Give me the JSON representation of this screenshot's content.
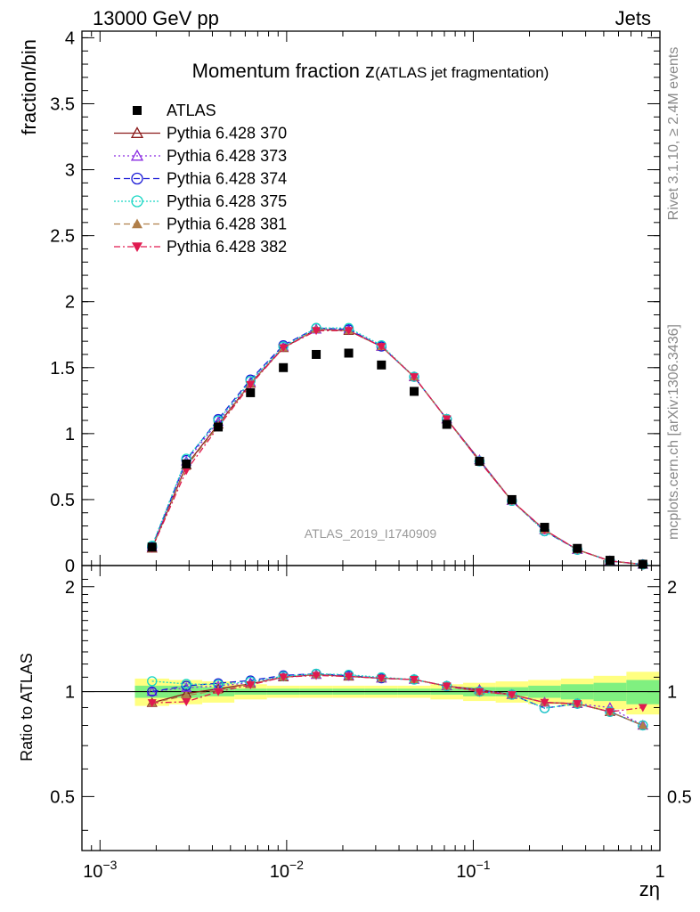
{
  "header": {
    "left": "13000 GeV pp",
    "right": "Jets"
  },
  "side_labels": {
    "rivet": "Rivet 3.1.10, ≥ 2.4M events",
    "mcplots": "mcplots.cern.ch [arXiv:1306.3436]"
  },
  "watermark": "ATLAS_2019_I1740909",
  "chart_data": {
    "type": "scatter",
    "title": "Momentum fraction z",
    "title_sub": "(ATLAS jet fragmentation)",
    "xlabel": "zη",
    "ylabel": "fraction/bin",
    "ratio_ylabel": "Ratio to ATLAS",
    "xscale": "log",
    "xlim": [
      0.0008,
      1.0
    ],
    "ylim": [
      0,
      4.05
    ],
    "ratio_ylim": [
      0.35,
      2.3
    ],
    "x_ticks": [
      {
        "value": 0.001,
        "base": "10",
        "exp": "−3"
      },
      {
        "value": 0.01,
        "base": "10",
        "exp": "−2"
      },
      {
        "value": 0.1,
        "base": "10",
        "exp": "−1"
      },
      {
        "value": 1,
        "base": "1",
        "exp": ""
      }
    ],
    "y_ticks": [
      "0",
      "0.5",
      "1",
      "1.5",
      "2",
      "2.5",
      "3",
      "3.5",
      "4"
    ],
    "ratio_ticks": [
      "0.5",
      "1",
      "2"
    ],
    "x": [
      0.0019,
      0.0029,
      0.0043,
      0.0064,
      0.0096,
      0.0144,
      0.0215,
      0.0322,
      0.0482,
      0.0721,
      0.108,
      0.161,
      0.241,
      0.361,
      0.54,
      0.81
    ],
    "band_outer": [
      0.09,
      0.08,
      0.07,
      0.05,
      0.04,
      0.04,
      0.04,
      0.04,
      0.04,
      0.05,
      0.06,
      0.07,
      0.08,
      0.09,
      0.11,
      0.14
    ],
    "band_inner": [
      0.04,
      0.04,
      0.03,
      0.02,
      0.02,
      0.02,
      0.02,
      0.02,
      0.02,
      0.02,
      0.03,
      0.03,
      0.04,
      0.05,
      0.06,
      0.08
    ],
    "data": {
      "name": "ATLAS",
      "color": "#000000",
      "values": [
        0.14,
        0.77,
        1.05,
        1.31,
        1.5,
        1.6,
        1.61,
        1.52,
        1.32,
        1.07,
        0.79,
        0.5,
        0.29,
        0.13,
        0.04,
        0.01
      ]
    },
    "series": [
      {
        "name": "Pythia 6.428 370",
        "color": "#8b1a1a",
        "marker": "triangle-open",
        "dash": "",
        "values": [
          0.13,
          0.76,
          1.07,
          1.38,
          1.65,
          1.79,
          1.78,
          1.66,
          1.43,
          1.11,
          0.8,
          0.49,
          0.27,
          0.12,
          0.035,
          0.008
        ]
      },
      {
        "name": "Pythia 6.428 373",
        "color": "#8a2be2",
        "marker": "triangle-open",
        "dash": "2,3",
        "values": [
          0.14,
          0.79,
          1.09,
          1.39,
          1.66,
          1.79,
          1.79,
          1.66,
          1.43,
          1.11,
          0.8,
          0.49,
          0.27,
          0.12,
          0.036,
          0.008
        ]
      },
      {
        "name": "Pythia 6.428 374",
        "color": "#1a1ad6",
        "marker": "circle-open",
        "dash": "7,4",
        "values": [
          0.14,
          0.8,
          1.11,
          1.41,
          1.67,
          1.8,
          1.79,
          1.66,
          1.43,
          1.11,
          0.79,
          0.49,
          0.26,
          0.12,
          0.035,
          0.008
        ]
      },
      {
        "name": "Pythia 6.428 375",
        "color": "#17d6c4",
        "marker": "circle-open",
        "dash": "2,2",
        "values": [
          0.15,
          0.81,
          1.1,
          1.4,
          1.66,
          1.8,
          1.8,
          1.67,
          1.43,
          1.11,
          0.79,
          0.49,
          0.26,
          0.12,
          0.035,
          0.008
        ]
      },
      {
        "name": "Pythia 6.428 381",
        "color": "#b07f4a",
        "marker": "triangle-filled",
        "dash": "7,4",
        "values": [
          0.13,
          0.75,
          1.06,
          1.38,
          1.65,
          1.79,
          1.78,
          1.66,
          1.43,
          1.11,
          0.79,
          0.49,
          0.27,
          0.12,
          0.035,
          0.008
        ]
      },
      {
        "name": "Pythia 6.428 382",
        "color": "#e0194f",
        "marker": "triangle-down-filled",
        "dash": "7,3,2,3",
        "values": [
          0.13,
          0.72,
          1.05,
          1.37,
          1.65,
          1.78,
          1.78,
          1.66,
          1.43,
          1.11,
          0.79,
          0.49,
          0.27,
          0.12,
          0.035,
          0.009
        ]
      }
    ]
  }
}
